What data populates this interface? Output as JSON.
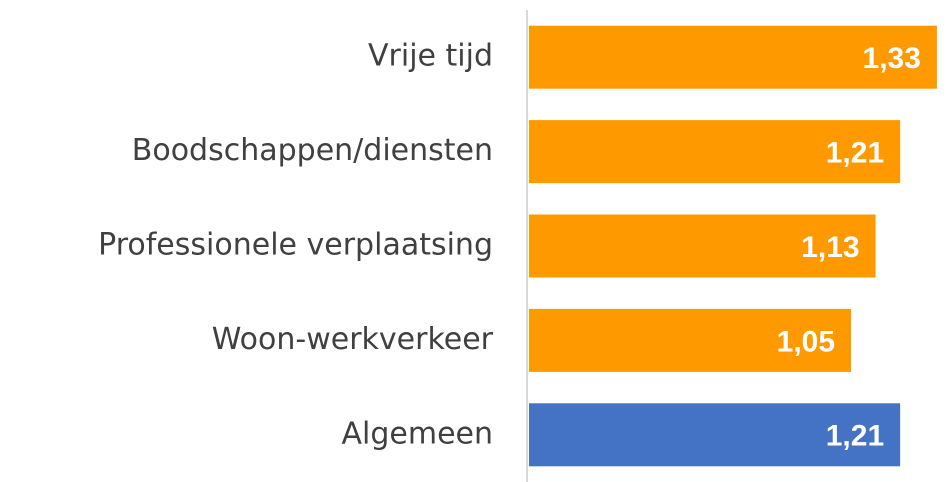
{
  "chart_data": {
    "type": "bar",
    "orientation": "horizontal",
    "categories": [
      "Vrije tijd",
      "Boodschappen/diensten",
      "Professionele verplaatsing",
      "Woon-werkverkeer",
      "Algemeen"
    ],
    "values": [
      1.33,
      1.21,
      1.13,
      1.05,
      1.21
    ],
    "value_labels": [
      "1,33",
      "1,21",
      "1,13",
      "1,05",
      "1,21"
    ],
    "colors": [
      "#ff9900",
      "#ff9900",
      "#ff9900",
      "#ff9900",
      "#4472c4"
    ],
    "xlim": [
      0,
      1.34
    ]
  }
}
